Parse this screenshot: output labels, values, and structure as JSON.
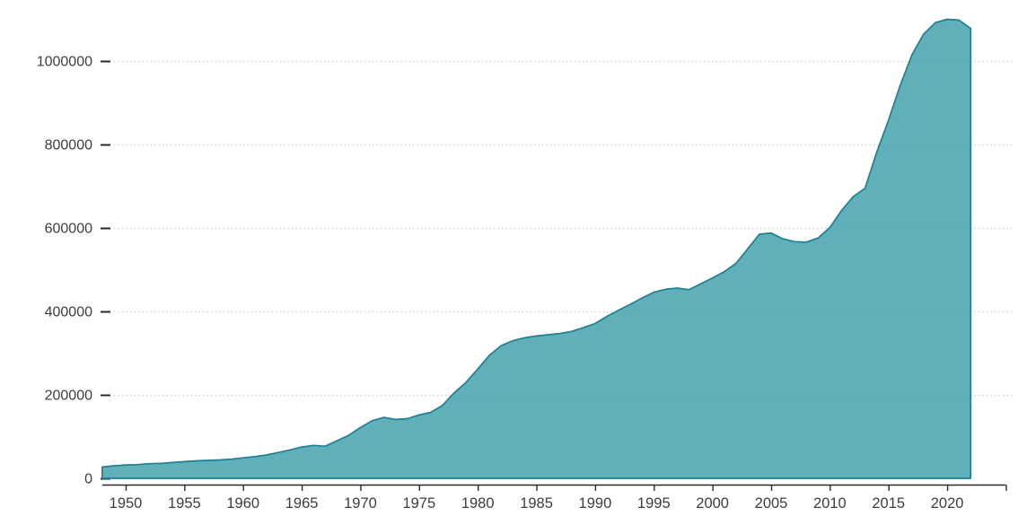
{
  "chart_data": {
    "type": "area",
    "title": "",
    "xlabel": "",
    "ylabel": "",
    "legend": "none",
    "grid": "horizontal-dotted",
    "xlim": [
      1948,
      2025
    ],
    "ylim": [
      0,
      1130000
    ],
    "x": [
      1948,
      1949,
      1950,
      1951,
      1952,
      1953,
      1954,
      1955,
      1956,
      1957,
      1958,
      1959,
      1960,
      1961,
      1962,
      1963,
      1964,
      1965,
      1966,
      1967,
      1968,
      1969,
      1970,
      1971,
      1972,
      1973,
      1974,
      1975,
      1976,
      1977,
      1978,
      1979,
      1980,
      1981,
      1982,
      1983,
      1984,
      1985,
      1986,
      1987,
      1988,
      1989,
      1990,
      1991,
      1992,
      1993,
      1994,
      1995,
      1996,
      1997,
      1998,
      1999,
      2000,
      2001,
      2002,
      2003,
      2004,
      2005,
      2006,
      2007,
      2008,
      2009,
      2010,
      2011,
      2012,
      2013,
      2014,
      2015,
      2016,
      2017,
      2018,
      2019,
      2020,
      2021,
      2022
    ],
    "values": [
      27000,
      30000,
      32000,
      33000,
      35000,
      36000,
      38000,
      40000,
      42000,
      43000,
      44000,
      46000,
      49000,
      52000,
      56000,
      62000,
      68000,
      75000,
      79000,
      77000,
      90000,
      103000,
      122000,
      138000,
      146000,
      141000,
      143000,
      152000,
      158000,
      175000,
      205000,
      230000,
      262000,
      295000,
      318000,
      330000,
      337000,
      341000,
      344000,
      347000,
      352000,
      361000,
      371000,
      388000,
      403000,
      417000,
      432000,
      446000,
      453000,
      456000,
      452000,
      466000,
      480000,
      495000,
      515000,
      550000,
      585000,
      588000,
      574000,
      567000,
      566000,
      576000,
      601000,
      642000,
      675000,
      695000,
      782000,
      858000,
      942000,
      1015000,
      1065000,
      1092000,
      1100000,
      1098000,
      1078000
    ],
    "y_ticks": [
      0,
      200000,
      400000,
      600000,
      800000,
      1000000
    ],
    "x_tick_years": [
      1950,
      1955,
      1960,
      1965,
      1970,
      1975,
      1980,
      1985,
      1990,
      1995,
      2000,
      2005,
      2010,
      2015,
      2020,
      2025
    ],
    "x_tick_labels": [
      "1950",
      "1955",
      "1960",
      "1965",
      "1970",
      "1975",
      "1980",
      "1985",
      "1990",
      "1995",
      "2000",
      "2005",
      "2010",
      "2015",
      "2020"
    ],
    "colors": {
      "fill": "#57acb6",
      "stroke": "#1e7f91",
      "axis": "#2b2b2b",
      "tick_label": "#3d3d3d",
      "gridline": "#cccccc",
      "background": "#ffffff"
    }
  }
}
